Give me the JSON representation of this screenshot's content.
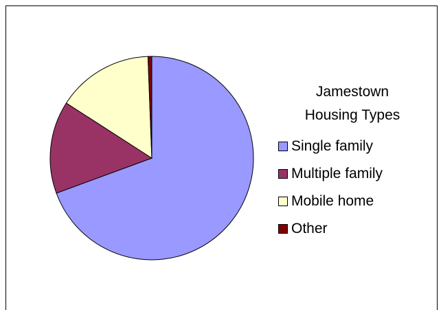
{
  "chart_data": {
    "type": "pie",
    "title": "Jamestown Housing Types",
    "categories": [
      "Single family",
      "Multiple family",
      "Mobile home",
      "Other"
    ],
    "values": [
      69.4,
      14.7,
      15.3,
      0.6
    ],
    "colors": [
      "#9999ff",
      "#993366",
      "#ffffcc",
      "#800000"
    ],
    "legend": "right"
  }
}
